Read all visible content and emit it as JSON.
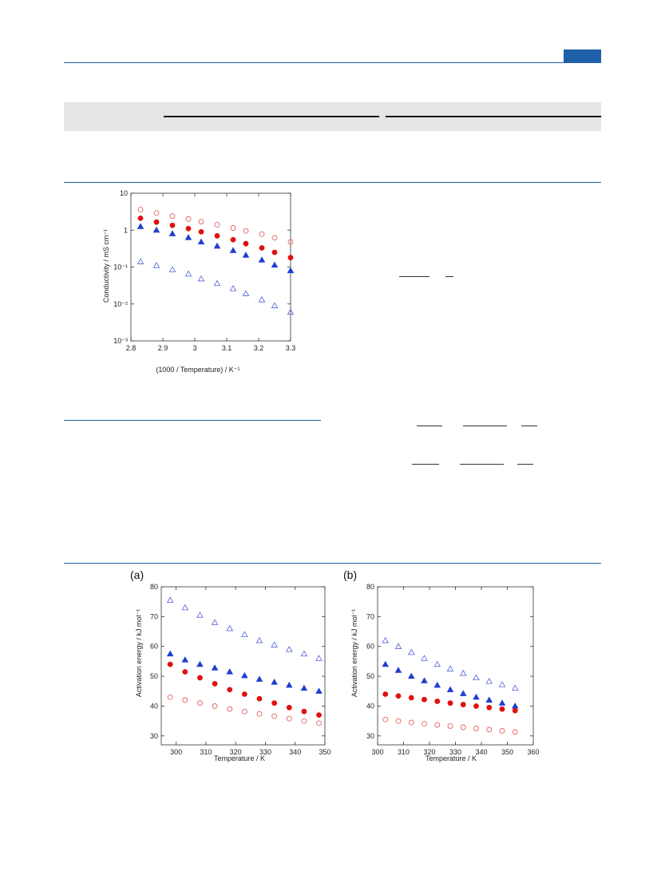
{
  "page": {
    "accent_color": "#1f5fa8"
  },
  "chart_data": [
    {
      "type": "scatter",
      "xlabel": "(1000 / Temperature) / K⁻¹",
      "ylabel": "Conductivity / mS cm⁻¹",
      "xlim": [
        2.8,
        3.3
      ],
      "ylim": [
        0.001,
        10
      ],
      "yscale": "log",
      "x_ticks": [
        "2.8",
        "2.9",
        "3",
        "3.1",
        "3.2",
        "3.3"
      ],
      "y_ticks": [
        "10⁻³",
        "10⁻²",
        "10⁻¹",
        "1",
        "10"
      ],
      "series": [
        {
          "marker": "open-circle",
          "color": "#e05050",
          "x": [
            2.83,
            2.88,
            2.93,
            2.98,
            3.02,
            3.07,
            3.12,
            3.16,
            3.21,
            3.25,
            3.3
          ],
          "y": [
            3.6,
            2.9,
            2.4,
            2.0,
            1.7,
            1.4,
            1.15,
            0.95,
            0.78,
            0.62,
            0.48
          ]
        },
        {
          "marker": "filled-circle",
          "color": "#e01010",
          "x": [
            2.83,
            2.88,
            2.93,
            2.98,
            3.02,
            3.07,
            3.12,
            3.16,
            3.21,
            3.25,
            3.3
          ],
          "y": [
            2.1,
            1.65,
            1.35,
            1.1,
            0.9,
            0.7,
            0.55,
            0.43,
            0.33,
            0.25,
            0.18
          ]
        },
        {
          "marker": "filled-triangle",
          "color": "#1f3fd0",
          "x": [
            2.83,
            2.88,
            2.93,
            2.98,
            3.02,
            3.07,
            3.12,
            3.16,
            3.21,
            3.25,
            3.3
          ],
          "y": [
            1.25,
            1.0,
            0.8,
            0.63,
            0.48,
            0.37,
            0.28,
            0.21,
            0.155,
            0.113,
            0.08
          ]
        },
        {
          "marker": "open-triangle",
          "color": "#5060d8",
          "x": [
            2.83,
            2.88,
            2.93,
            2.98,
            3.02,
            3.07,
            3.12,
            3.16,
            3.21,
            3.25,
            3.3
          ],
          "y": [
            0.14,
            0.11,
            0.085,
            0.065,
            0.048,
            0.036,
            0.026,
            0.019,
            0.013,
            0.009,
            0.006
          ]
        }
      ]
    },
    {
      "type": "scatter",
      "panel_label": "(a)",
      "xlabel": "Temperature / K",
      "ylabel": "Activation energy / kJ mol⁻¹",
      "xlim": [
        295,
        350
      ],
      "ylim": [
        27,
        80
      ],
      "x_ticks": [
        300,
        310,
        320,
        330,
        340,
        350
      ],
      "y_ticks": [
        30,
        40,
        50,
        60,
        70,
        80
      ],
      "series": [
        {
          "marker": "open-triangle",
          "color": "#5060d8",
          "x": [
            298,
            303,
            308,
            313,
            318,
            323,
            328,
            333,
            338,
            343,
            348
          ],
          "y": [
            75.5,
            73,
            70.5,
            68,
            66,
            64,
            62,
            60.5,
            59,
            57.5,
            56
          ]
        },
        {
          "marker": "filled-triangle",
          "color": "#1f3fd0",
          "x": [
            298,
            303,
            308,
            313,
            318,
            323,
            328,
            333,
            338,
            343,
            348
          ],
          "y": [
            57.5,
            55.5,
            54,
            52.8,
            51.5,
            50.2,
            49,
            48,
            47,
            46,
            45
          ]
        },
        {
          "marker": "filled-circle",
          "color": "#e01010",
          "x": [
            298,
            303,
            308,
            313,
            318,
            323,
            328,
            333,
            338,
            343,
            348
          ],
          "y": [
            54,
            51.5,
            49.5,
            47.5,
            45.5,
            44,
            42.5,
            41,
            39.5,
            38.2,
            37
          ]
        },
        {
          "marker": "open-circle",
          "color": "#e05050",
          "x": [
            298,
            303,
            308,
            313,
            318,
            323,
            328,
            333,
            338,
            343,
            348
          ],
          "y": [
            43,
            42,
            41,
            40,
            39,
            38.2,
            37.4,
            36.6,
            35.8,
            35,
            34.3
          ]
        }
      ]
    },
    {
      "type": "scatter",
      "panel_label": "(b)",
      "xlabel": "Temperature / K",
      "ylabel": "Activation energy / kJ mol⁻¹",
      "xlim": [
        300,
        360
      ],
      "ylim": [
        27,
        80
      ],
      "x_ticks": [
        300,
        310,
        320,
        330,
        340,
        350,
        360
      ],
      "y_ticks": [
        30,
        40,
        50,
        60,
        70,
        80
      ],
      "series": [
        {
          "marker": "open-triangle",
          "color": "#5060d8",
          "x": [
            303,
            308,
            313,
            318,
            323,
            328,
            333,
            338,
            343,
            348,
            353
          ],
          "y": [
            62,
            60,
            58,
            56,
            54,
            52.5,
            51,
            49.5,
            48.3,
            47.2,
            46
          ]
        },
        {
          "marker": "filled-triangle",
          "color": "#1f3fd0",
          "x": [
            303,
            308,
            313,
            318,
            323,
            328,
            333,
            338,
            343,
            348,
            353
          ],
          "y": [
            54,
            52,
            50,
            48.5,
            47,
            45.5,
            44.2,
            43,
            42,
            41,
            40
          ]
        },
        {
          "marker": "filled-circle",
          "color": "#e01010",
          "x": [
            303,
            308,
            313,
            318,
            323,
            328,
            333,
            338,
            343,
            348,
            353
          ],
          "y": [
            44,
            43.4,
            42.8,
            42.2,
            41.6,
            41,
            40.5,
            40,
            39.5,
            39,
            38.5
          ]
        },
        {
          "marker": "open-circle",
          "color": "#e05050",
          "x": [
            303,
            308,
            313,
            318,
            323,
            328,
            333,
            338,
            343,
            348,
            353
          ],
          "y": [
            35.5,
            35,
            34.5,
            34.1,
            33.7,
            33.3,
            32.9,
            32.5,
            32.1,
            31.7,
            31.3
          ]
        }
      ]
    }
  ]
}
